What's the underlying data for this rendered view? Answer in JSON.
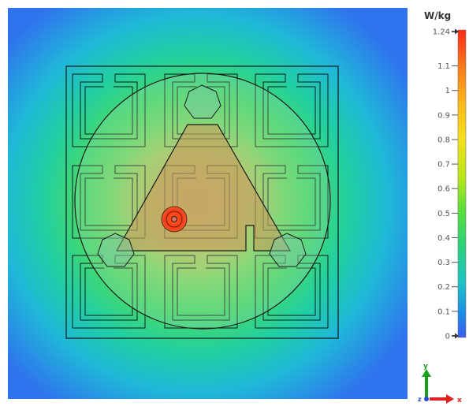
{
  "colorbar": {
    "unit": "W/kg",
    "max": 1.24,
    "min": 0,
    "ticks": [
      {
        "label": "1.24",
        "value": 1.24,
        "marker": true
      },
      {
        "label": "1.1",
        "value": 1.1
      },
      {
        "label": "1",
        "value": 1.0
      },
      {
        "label": "0.9",
        "value": 0.9
      },
      {
        "label": "0.8",
        "value": 0.8
      },
      {
        "label": "0.7",
        "value": 0.7
      },
      {
        "label": "0.6",
        "value": 0.6
      },
      {
        "label": "0.5",
        "value": 0.5
      },
      {
        "label": "0.4",
        "value": 0.4
      },
      {
        "label": "0.3",
        "value": 0.3
      },
      {
        "label": "0.2",
        "value": 0.2
      },
      {
        "label": "0.1",
        "value": 0.1
      },
      {
        "label": "0",
        "value": 0,
        "marker": true
      }
    ],
    "gradient_colors": [
      "#ff2a1a",
      "#ff7a1a",
      "#ffbe1a",
      "#f4e11a",
      "#b9e61a",
      "#5fe03a",
      "#2bd27a",
      "#1ec4c4",
      "#1d8ee8",
      "#3a5cf0"
    ]
  },
  "axes": {
    "y_label": "y",
    "z_label": "z",
    "x_label": "x",
    "y_color": "#1aa01a",
    "x_color": "#e02020",
    "z_color": "#2a4ad0"
  },
  "field_colors": {
    "outer": "#2f7df0",
    "mid": "#1ed0c8",
    "green": "#3fd86a",
    "center": "#a6cf7a",
    "hotspot": "#ff3a1a"
  }
}
